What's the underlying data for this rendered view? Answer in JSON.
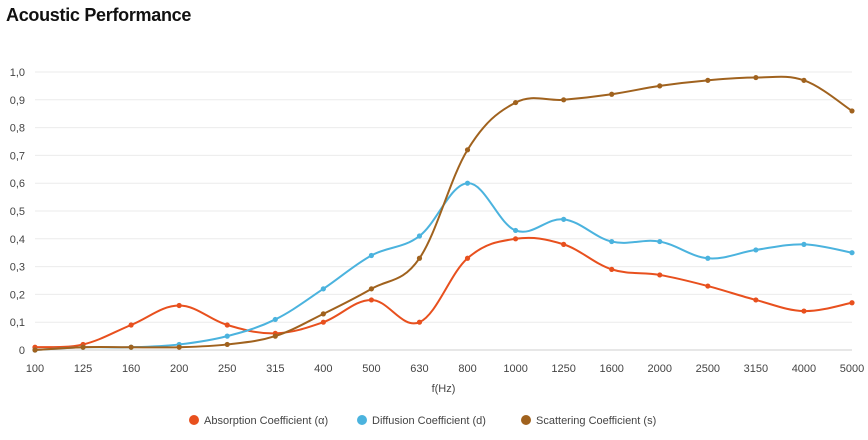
{
  "chart_data": {
    "type": "line",
    "title": "Acoustic Performance",
    "xlabel": "f(Hz)",
    "ylabel": "",
    "ylim": [
      0,
      1.0
    ],
    "yticks": [
      "0",
      "0,1",
      "0,2",
      "0,3",
      "0,4",
      "0,5",
      "0,6",
      "0,7",
      "0,8",
      "0,9",
      "1,0"
    ],
    "categories": [
      "100",
      "125",
      "160",
      "200",
      "250",
      "315",
      "400",
      "500",
      "630",
      "800",
      "1000",
      "1250",
      "1600",
      "2000",
      "2500",
      "3150",
      "4000",
      "5000"
    ],
    "grid": true,
    "legend_position": "bottom-center",
    "series": [
      {
        "name": "Absorption Coefficient (α)",
        "color": "#e8501e",
        "values": [
          0.01,
          0.02,
          0.09,
          0.16,
          0.09,
          0.06,
          0.1,
          0.18,
          0.1,
          0.33,
          0.4,
          0.38,
          0.29,
          0.27,
          0.23,
          0.18,
          0.14,
          0.17
        ]
      },
      {
        "name": "Diffusion Coefficient (d)",
        "color": "#4bb3de",
        "values": [
          0.0,
          0.01,
          0.01,
          0.02,
          0.05,
          0.11,
          0.22,
          0.34,
          0.41,
          0.6,
          0.43,
          0.47,
          0.39,
          0.39,
          0.33,
          0.36,
          0.38,
          0.35
        ]
      },
      {
        "name": "Scattering Coefficient (s)",
        "color": "#a0621e",
        "values": [
          0.0,
          0.01,
          0.01,
          0.01,
          0.02,
          0.05,
          0.13,
          0.22,
          0.33,
          0.72,
          0.89,
          0.9,
          0.92,
          0.95,
          0.97,
          0.98,
          0.97,
          0.86
        ]
      }
    ]
  }
}
